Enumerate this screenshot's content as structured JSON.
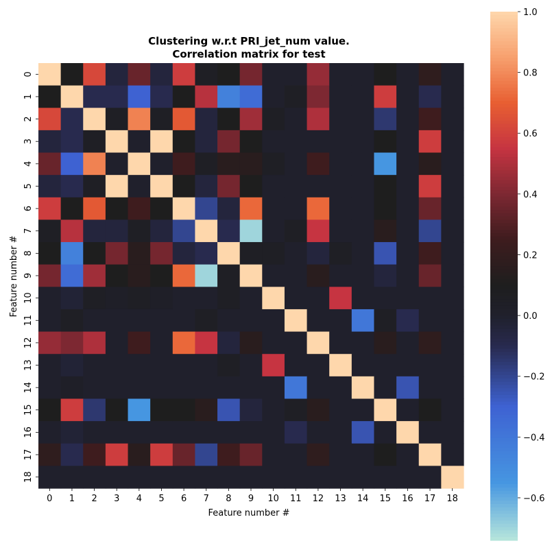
{
  "chart_data": {
    "type": "heatmap",
    "title": [
      "Clustering w.r.t PRI_jet_num value.",
      "Correlation matrix for test"
    ],
    "xlabel": "Feature number #",
    "ylabel": "Feature number #",
    "x_categories": [
      "0",
      "1",
      "2",
      "3",
      "4",
      "5",
      "6",
      "7",
      "8",
      "9",
      "10",
      "11",
      "12",
      "13",
      "14",
      "15",
      "16",
      "17",
      "18"
    ],
    "y_categories": [
      "0",
      "1",
      "2",
      "3",
      "4",
      "5",
      "6",
      "7",
      "8",
      "9",
      "10",
      "11",
      "12",
      "13",
      "14",
      "15",
      "16",
      "17",
      "18"
    ],
    "matrix": [
      [
        1.0,
        0.1,
        0.62,
        -0.05,
        0.35,
        -0.05,
        0.58,
        0.05,
        0.1,
        0.38,
        0.0,
        0.0,
        0.45,
        0.0,
        0.0,
        0.1,
        0.0,
        0.18,
        0.0
      ],
      [
        0.1,
        1.0,
        -0.1,
        -0.1,
        -0.3,
        -0.1,
        0.1,
        0.52,
        -0.45,
        -0.35,
        0.0,
        0.05,
        0.4,
        0.0,
        0.0,
        0.58,
        0.0,
        -0.1,
        0.0
      ],
      [
        0.62,
        -0.1,
        1.0,
        0.05,
        0.78,
        0.05,
        0.68,
        -0.05,
        0.1,
        0.47,
        0.05,
        0.0,
        0.5,
        0.0,
        0.0,
        -0.15,
        0.0,
        0.25,
        0.0
      ],
      [
        -0.05,
        -0.1,
        0.05,
        1.0,
        0.0,
        1.0,
        0.1,
        -0.05,
        0.38,
        0.1,
        0.0,
        0.0,
        0.0,
        0.0,
        0.0,
        0.1,
        0.0,
        0.58,
        0.0
      ],
      [
        0.35,
        -0.3,
        0.78,
        0.0,
        1.0,
        0.0,
        0.25,
        0.05,
        0.15,
        0.15,
        0.05,
        0.0,
        0.25,
        0.0,
        0.0,
        -0.55,
        0.0,
        0.15,
        0.0
      ],
      [
        -0.05,
        -0.1,
        0.05,
        1.0,
        0.0,
        1.0,
        0.1,
        -0.05,
        0.38,
        0.1,
        0.0,
        0.0,
        0.0,
        0.0,
        0.0,
        0.1,
        0.0,
        0.58,
        0.0
      ],
      [
        0.58,
        0.1,
        0.68,
        0.1,
        0.25,
        0.1,
        1.0,
        -0.2,
        -0.05,
        0.72,
        0.0,
        0.0,
        0.72,
        0.0,
        0.0,
        0.1,
        0.0,
        0.35,
        0.0
      ],
      [
        0.05,
        0.52,
        -0.05,
        -0.05,
        0.05,
        -0.05,
        -0.2,
        1.0,
        -0.1,
        -0.7,
        0.0,
        0.05,
        0.55,
        0.0,
        0.0,
        0.15,
        0.0,
        -0.2,
        0.0
      ],
      [
        0.1,
        -0.45,
        0.1,
        0.38,
        0.15,
        0.38,
        -0.05,
        -0.1,
        1.0,
        0.05,
        0.05,
        0.0,
        -0.05,
        0.05,
        0.0,
        -0.25,
        0.0,
        0.25,
        0.0
      ],
      [
        0.38,
        -0.35,
        0.47,
        0.1,
        0.15,
        0.1,
        0.72,
        -0.7,
        0.05,
        1.0,
        0.0,
        0.0,
        0.15,
        0.0,
        0.0,
        -0.05,
        0.0,
        0.35,
        0.0
      ],
      [
        0.0,
        -0.03,
        0.05,
        0.03,
        0.05,
        0.03,
        0.0,
        0.0,
        0.05,
        0.0,
        1.0,
        0.0,
        0.0,
        0.55,
        0.0,
        0.0,
        0.0,
        0.0,
        0.0
      ],
      [
        0.0,
        0.05,
        0.0,
        0.0,
        0.0,
        0.0,
        0.0,
        0.05,
        0.0,
        0.0,
        0.0,
        1.0,
        0.0,
        0.0,
        -0.4,
        0.05,
        -0.1,
        0.0,
        0.0
      ],
      [
        0.45,
        0.4,
        0.5,
        0.0,
        0.25,
        0.0,
        0.72,
        0.55,
        -0.05,
        0.15,
        0.0,
        0.0,
        1.0,
        0.0,
        0.0,
        0.15,
        0.0,
        0.18,
        0.0
      ],
      [
        0.0,
        -0.03,
        0.0,
        0.0,
        0.0,
        0.0,
        0.0,
        0.0,
        0.05,
        0.0,
        0.55,
        0.0,
        0.0,
        1.0,
        0.0,
        0.0,
        0.0,
        0.0,
        0.0
      ],
      [
        0.0,
        0.03,
        0.0,
        0.0,
        0.0,
        0.0,
        0.0,
        0.0,
        0.0,
        0.0,
        0.0,
        -0.4,
        0.0,
        0.0,
        1.0,
        0.0,
        -0.25,
        0.0,
        0.0
      ],
      [
        0.1,
        0.58,
        -0.15,
        0.1,
        -0.55,
        0.1,
        0.1,
        0.15,
        -0.25,
        -0.05,
        0.0,
        0.05,
        0.15,
        0.0,
        0.0,
        1.0,
        0.0,
        0.1,
        0.0
      ],
      [
        0.0,
        -0.03,
        0.0,
        0.0,
        0.0,
        0.0,
        0.0,
        0.0,
        0.0,
        0.0,
        0.0,
        -0.1,
        0.0,
        0.0,
        -0.25,
        0.0,
        1.0,
        0.0,
        0.0
      ],
      [
        0.18,
        -0.1,
        0.25,
        0.58,
        0.15,
        0.58,
        0.35,
        -0.2,
        0.25,
        0.35,
        0.0,
        0.0,
        0.18,
        0.0,
        0.0,
        0.1,
        0.0,
        1.0,
        0.0
      ],
      [
        0.0,
        0.0,
        0.0,
        0.0,
        0.0,
        0.0,
        0.0,
        0.0,
        0.0,
        0.0,
        0.0,
        0.0,
        0.0,
        0.0,
        0.0,
        0.0,
        0.0,
        0.0,
        1.0
      ]
    ],
    "colorbar": {
      "vmin": -0.74,
      "vmax": 1.0,
      "ticks": [
        1.0,
        0.8,
        0.6,
        0.4,
        0.2,
        0.0,
        -0.2,
        -0.4,
        -0.6
      ],
      "tick_labels": [
        "1.0",
        "0.8",
        "0.6",
        "0.4",
        "0.2",
        "0.0",
        "−0.2",
        "−0.4",
        "−0.6"
      ],
      "colormap": "icefire-like"
    },
    "grid": false
  }
}
